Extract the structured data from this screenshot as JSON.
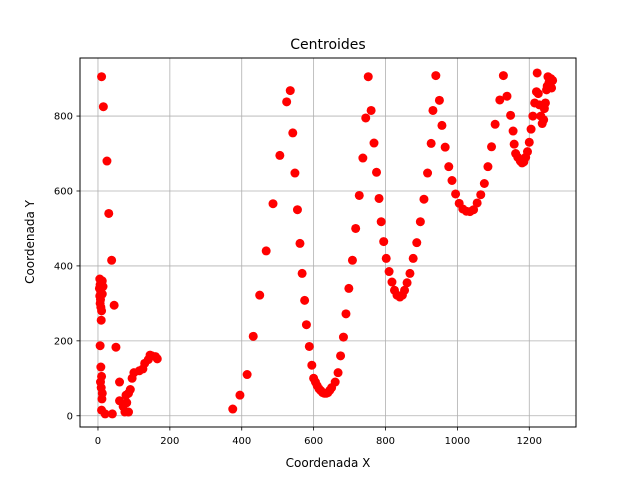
{
  "chart_data": {
    "type": "scatter",
    "title": "Centroides",
    "xlabel": "Coordenada X",
    "ylabel": "Coordenada Y",
    "xlim": [
      -50,
      1330
    ],
    "ylim": [
      -30,
      955
    ],
    "xticks": [
      0,
      200,
      400,
      600,
      800,
      1000,
      1200
    ],
    "yticks": [
      0,
      200,
      400,
      600,
      800
    ],
    "grid": true,
    "marker_color": "#ff0000",
    "series": [
      {
        "points": [
          [
            10,
            905
          ],
          [
            15,
            825
          ],
          [
            25,
            680
          ],
          [
            30,
            540
          ],
          [
            38,
            415
          ],
          [
            45,
            295
          ],
          [
            50,
            183
          ],
          [
            5,
            365
          ],
          [
            6,
            350
          ],
          [
            4,
            340
          ],
          [
            8,
            330
          ],
          [
            5,
            320
          ],
          [
            7,
            310
          ],
          [
            6,
            300
          ],
          [
            8,
            290
          ],
          [
            10,
            280
          ],
          [
            12,
            360
          ],
          [
            14,
            345
          ],
          [
            12,
            325
          ],
          [
            9,
            255
          ],
          [
            6,
            187
          ],
          [
            8,
            130
          ],
          [
            10,
            105
          ],
          [
            7,
            90
          ],
          [
            9,
            75
          ],
          [
            12,
            60
          ],
          [
            11,
            45
          ],
          [
            10,
            15
          ],
          [
            20,
            5
          ],
          [
            40,
            5
          ],
          [
            60,
            90
          ],
          [
            60,
            40
          ],
          [
            70,
            25
          ],
          [
            75,
            10
          ],
          [
            80,
            35
          ],
          [
            85,
            10
          ],
          [
            78,
            55
          ],
          [
            85,
            60
          ],
          [
            90,
            70
          ],
          [
            95,
            100
          ],
          [
            100,
            115
          ],
          [
            115,
            120
          ],
          [
            125,
            125
          ],
          [
            130,
            140
          ],
          [
            140,
            150
          ],
          [
            145,
            162
          ],
          [
            150,
            160
          ],
          [
            160,
            158
          ],
          [
            165,
            152
          ],
          [
            375,
            18
          ],
          [
            395,
            55
          ],
          [
            415,
            110
          ],
          [
            432,
            212
          ],
          [
            450,
            322
          ],
          [
            468,
            440
          ],
          [
            487,
            566
          ],
          [
            506,
            695
          ],
          [
            525,
            838
          ],
          [
            535,
            868
          ],
          [
            542,
            755
          ],
          [
            548,
            648
          ],
          [
            555,
            550
          ],
          [
            562,
            460
          ],
          [
            568,
            380
          ],
          [
            575,
            308
          ],
          [
            580,
            243
          ],
          [
            588,
            185
          ],
          [
            595,
            135
          ],
          [
            600,
            100
          ],
          [
            605,
            90
          ],
          [
            610,
            80
          ],
          [
            615,
            72
          ],
          [
            620,
            67
          ],
          [
            625,
            62
          ],
          [
            630,
            60
          ],
          [
            635,
            60
          ],
          [
            640,
            62
          ],
          [
            645,
            68
          ],
          [
            650,
            75
          ],
          [
            660,
            90
          ],
          [
            668,
            115
          ],
          [
            675,
            160
          ],
          [
            683,
            210
          ],
          [
            690,
            272
          ],
          [
            698,
            340
          ],
          [
            708,
            415
          ],
          [
            717,
            500
          ],
          [
            727,
            588
          ],
          [
            737,
            688
          ],
          [
            745,
            795
          ],
          [
            752,
            905
          ],
          [
            760,
            815
          ],
          [
            768,
            728
          ],
          [
            775,
            650
          ],
          [
            782,
            580
          ],
          [
            788,
            518
          ],
          [
            795,
            465
          ],
          [
            802,
            420
          ],
          [
            810,
            385
          ],
          [
            818,
            357
          ],
          [
            825,
            335
          ],
          [
            832,
            322
          ],
          [
            840,
            317
          ],
          [
            847,
            322
          ],
          [
            853,
            335
          ],
          [
            860,
            355
          ],
          [
            868,
            380
          ],
          [
            877,
            420
          ],
          [
            887,
            462
          ],
          [
            897,
            518
          ],
          [
            907,
            578
          ],
          [
            917,
            648
          ],
          [
            927,
            727
          ],
          [
            932,
            815
          ],
          [
            940,
            908
          ],
          [
            950,
            842
          ],
          [
            957,
            775
          ],
          [
            966,
            717
          ],
          [
            976,
            665
          ],
          [
            985,
            628
          ],
          [
            995,
            592
          ],
          [
            1005,
            567
          ],
          [
            1015,
            552
          ],
          [
            1025,
            546
          ],
          [
            1035,
            545
          ],
          [
            1045,
            550
          ],
          [
            1055,
            568
          ],
          [
            1065,
            590
          ],
          [
            1075,
            620
          ],
          [
            1085,
            665
          ],
          [
            1095,
            718
          ],
          [
            1105,
            778
          ],
          [
            1118,
            843
          ],
          [
            1128,
            908
          ],
          [
            1138,
            853
          ],
          [
            1148,
            802
          ],
          [
            1155,
            760
          ],
          [
            1158,
            725
          ],
          [
            1162,
            700
          ],
          [
            1168,
            690
          ],
          [
            1175,
            680
          ],
          [
            1180,
            675
          ],
          [
            1185,
            678
          ],
          [
            1190,
            690
          ],
          [
            1195,
            705
          ],
          [
            1200,
            730
          ],
          [
            1205,
            765
          ],
          [
            1210,
            800
          ],
          [
            1215,
            835
          ],
          [
            1220,
            865
          ],
          [
            1222,
            915
          ],
          [
            1225,
            860
          ],
          [
            1228,
            830
          ],
          [
            1232,
            800
          ],
          [
            1236,
            780
          ],
          [
            1240,
            790
          ],
          [
            1242,
            820
          ],
          [
            1245,
            835
          ],
          [
            1248,
            870
          ],
          [
            1250,
            880
          ],
          [
            1252,
            905
          ],
          [
            1255,
            890
          ],
          [
            1258,
            895
          ],
          [
            1260,
            900
          ],
          [
            1262,
            875
          ],
          [
            1265,
            895
          ]
        ]
      }
    ]
  }
}
